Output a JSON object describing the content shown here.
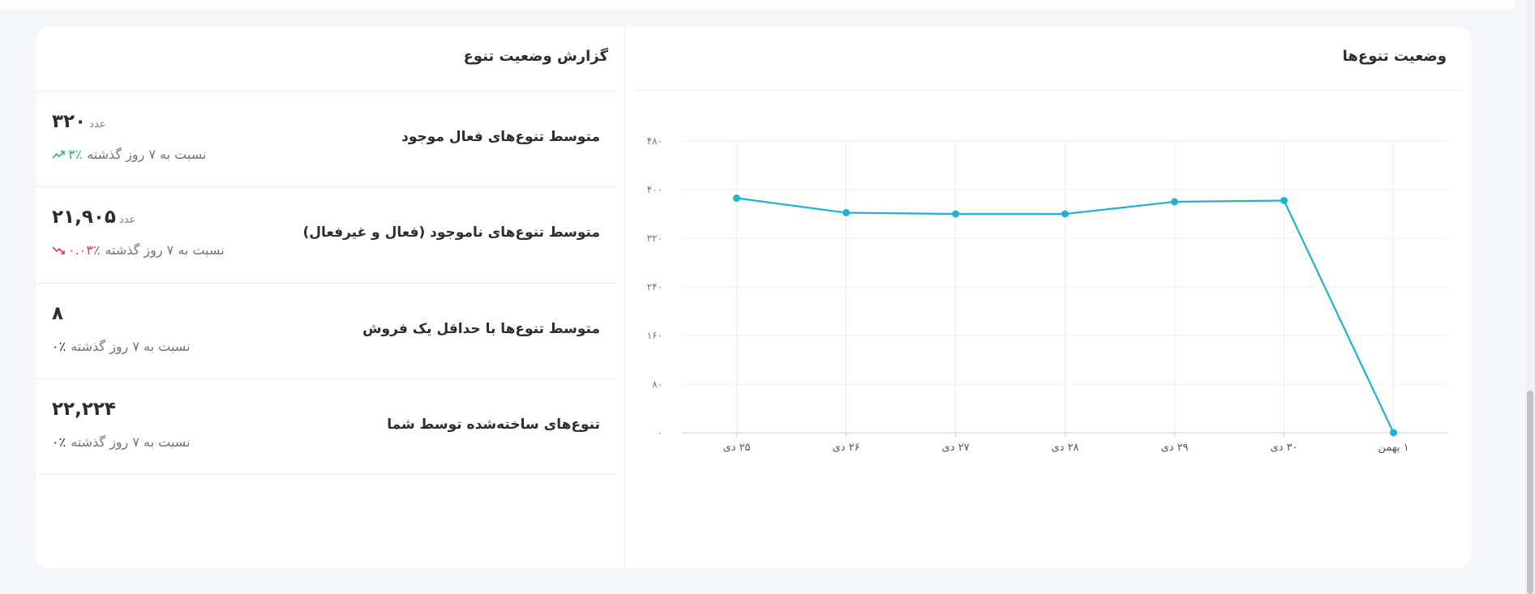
{
  "chart_panel": {
    "title": "وضعیت تنوع‌ها"
  },
  "report_panel": {
    "title": "گزارش وضعیت تنوع",
    "comparison_text": "نسبت به ۷ روز گذشته",
    "rows": [
      {
        "label": "متوسط تنوع‌های فعال موجود",
        "value": "۳۲۰",
        "unit": "عدد",
        "change": "۳٪",
        "trend": "up"
      },
      {
        "label": "متوسط تنوع‌های ناموجود (فعال و غیرفعال)",
        "value": "۲۱,۹۰۵",
        "unit": "عدد",
        "change": "۰.۰۳٪",
        "trend": "down"
      },
      {
        "label": "متوسط تنوع‌ها با حداقل یک فروش",
        "value": "۸",
        "unit": "",
        "change": "۰٪",
        "trend": "neutral"
      },
      {
        "label": "تنوع‌های ساخته‌شده توسط شما",
        "value": "۲۲,۲۲۴",
        "unit": "",
        "change": "۰٪",
        "trend": "neutral"
      }
    ]
  },
  "colors": {
    "line": "#1eb1d6",
    "up": "#2ab673",
    "down": "#e23b49",
    "grid": "#eceef2"
  },
  "chart_data": {
    "type": "line",
    "categories": [
      "۲۵ دی",
      "۲۶ دی",
      "۲۷ دی",
      "۲۸ دی",
      "۲۹ دی",
      "۳۰ دی",
      "۱ بهمن"
    ],
    "y_ticks": [
      "۰",
      "۸۰",
      "۱۶۰",
      "۲۴۰",
      "۳۲۰",
      "۴۰۰",
      "۴۸۰"
    ],
    "ylim": [
      0,
      480
    ],
    "series": [
      {
        "values": [
          386,
          362,
          360,
          360,
          380,
          382,
          0
        ]
      }
    ],
    "grid": true,
    "legend": "none"
  }
}
